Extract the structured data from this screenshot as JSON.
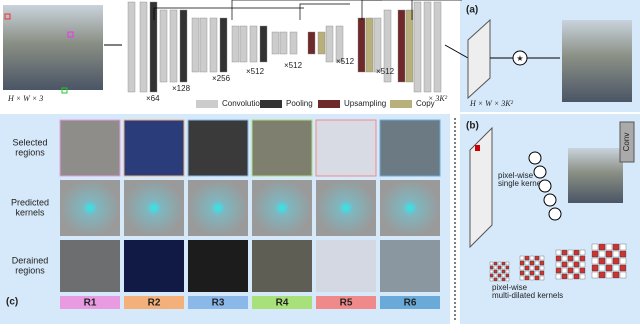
{
  "network": {
    "input_dim": "H × W × 3",
    "channels": [
      "×64",
      "×128",
      "×256",
      "×512",
      "×512",
      "×512",
      "×512"
    ],
    "output_channels": "× 3K²",
    "legend": [
      "Convolution",
      "Pooling",
      "Upsampling",
      "Copy"
    ]
  },
  "panel_a": {
    "label": "(a)",
    "dim": "H × W × 3K²"
  },
  "panel_b": {
    "label": "(b)",
    "single": [
      "pixel-wise",
      "single kernel"
    ],
    "multi": [
      "pixel-wise",
      "multi-dilated kernels"
    ],
    "conv": "Conv"
  },
  "panel_c": {
    "label": "(c)",
    "rows": [
      [
        "Selected",
        "regions"
      ],
      [
        "Predicted",
        "kernels"
      ],
      [
        "Derained",
        "regions"
      ]
    ],
    "regions": [
      "R1",
      "R2",
      "R3",
      "R4",
      "R5",
      "R6"
    ]
  }
}
